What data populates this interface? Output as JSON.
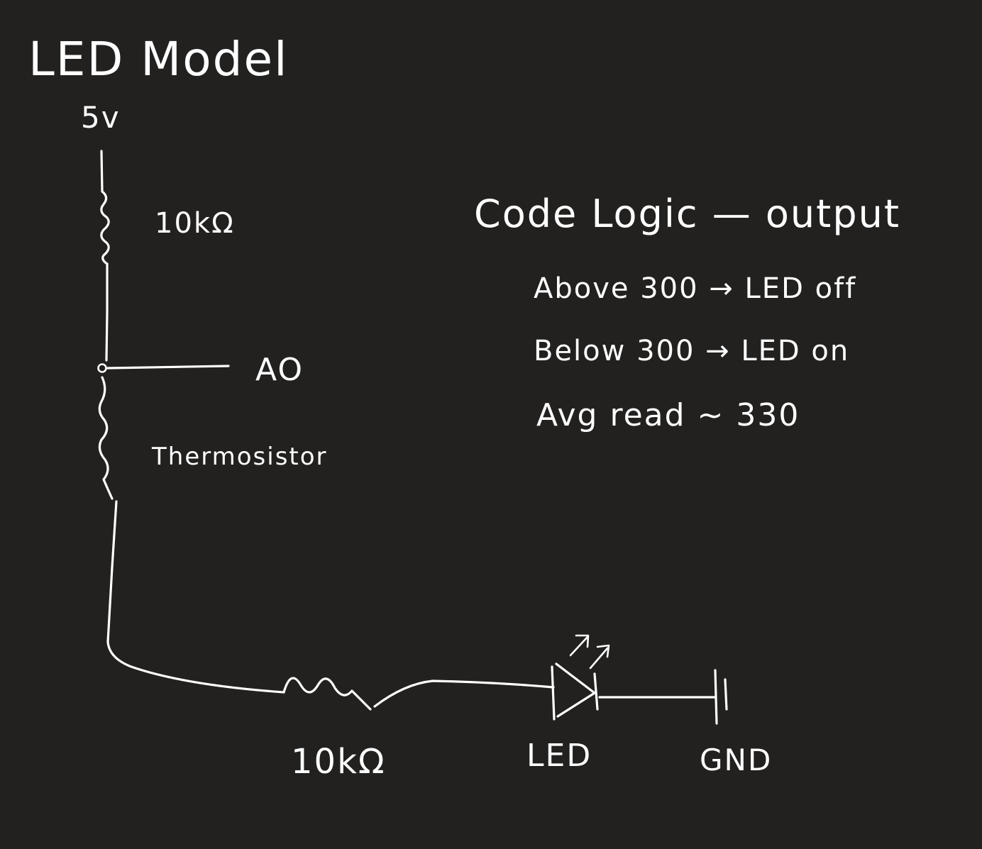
{
  "title": "LED Model",
  "labels": {
    "supply": "5v",
    "resistor_top": "10kΩ",
    "analog_out": "AO",
    "thermistor": "Thermosistor",
    "resistor_bottom": "10kΩ",
    "led": "LED",
    "ground": "GND"
  },
  "notes": {
    "heading": "Code Logic — output",
    "line1": "Above 300 → LED off",
    "line2": "Below 300 → LED on",
    "line3": "Avg read ~ 330"
  },
  "colors": {
    "background": "#222120",
    "ink": "#ffffff"
  }
}
